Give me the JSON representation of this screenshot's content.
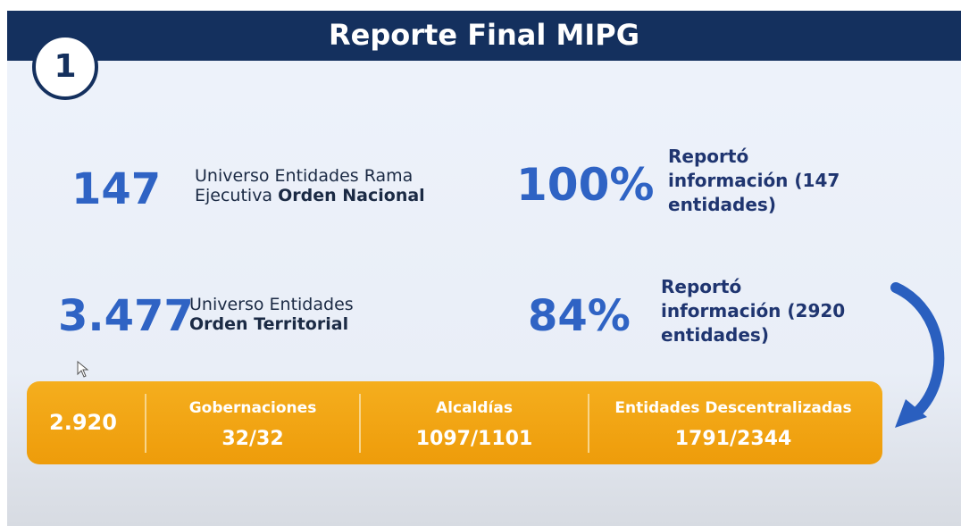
{
  "header": {
    "number": "1",
    "title": "Reporte Final MIPG"
  },
  "stats": [
    {
      "value": "147",
      "label_line1": "Universo Entidades Rama",
      "label_line2": "Ejecutiva ",
      "label_bold": "Orden Nacional",
      "percent": "100%",
      "report_lines": [
        "Reportó",
        "información (147",
        "entidades)"
      ]
    },
    {
      "value": "3.477",
      "label_line1": "Universo Entidades",
      "label_line2": "",
      "label_bold": "Orden Territorial",
      "percent": "84%",
      "report_lines": [
        "Reportó",
        "información (2920",
        "entidades)"
      ]
    }
  ],
  "summary": {
    "total": "2.920",
    "groups": [
      {
        "label": "Gobernaciones",
        "value": "32/32"
      },
      {
        "label": "Alcaldías",
        "value": "1097/1101"
      },
      {
        "label": "Entidades Descentralizadas",
        "value": "1791/2344"
      }
    ]
  }
}
